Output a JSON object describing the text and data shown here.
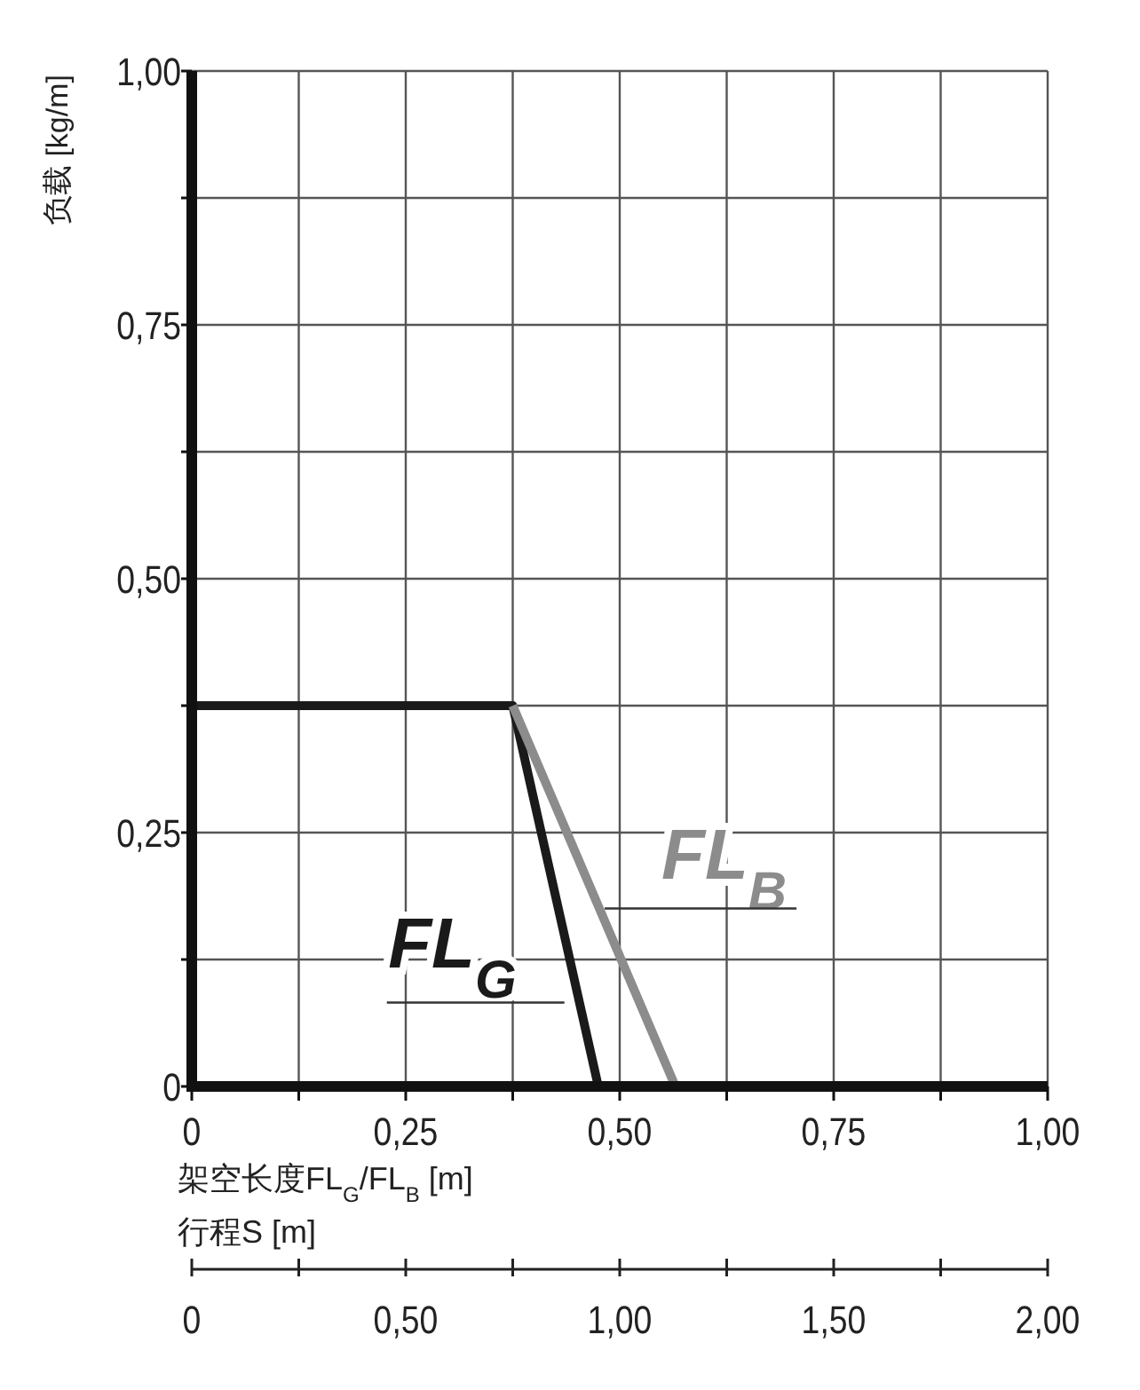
{
  "chart_data": {
    "type": "line",
    "xlabel": "架空长度FL$_{G}$/FL$_{B}$ [m]",
    "ylabel": "负载 [kg/m]",
    "x2label": "行程S [m]",
    "xlim": [
      0,
      1
    ],
    "ylim": [
      0,
      1
    ],
    "x2lim": [
      0,
      2
    ],
    "xticks": [
      0,
      {
        "value": 0.125,
        "label": null
      },
      {
        "value": 0.25,
        "label": "0,25"
      },
      {
        "value": 0.375,
        "label": null
      },
      {
        "value": 0.5,
        "label": "0,50"
      },
      {
        "value": 0.625,
        "label": null
      },
      {
        "value": 0.75,
        "label": "0,75"
      },
      {
        "value": 0.875,
        "label": null
      },
      {
        "value": 1,
        "label": "1,00"
      }
    ],
    "yticks": [
      0,
      {
        "value": 0.125,
        "label": null
      },
      {
        "value": 0.25,
        "label": "0,25"
      },
      {
        "value": 0.375,
        "label": null
      },
      {
        "value": 0.5,
        "label": "0,50"
      },
      {
        "value": 0.625,
        "label": null
      },
      {
        "value": 0.75,
        "label": "0,75"
      },
      {
        "value": 0.875,
        "label": null
      },
      {
        "value": 1,
        "label": "1,00"
      }
    ],
    "x2ticks": [
      0,
      {
        "value": 0.25,
        "label": null
      },
      {
        "value": 0.5,
        "label": "0,50"
      },
      {
        "value": 0.75,
        "label": null
      },
      {
        "value": 1,
        "label": "1,00"
      },
      {
        "value": 1.25,
        "label": null
      },
      {
        "value": 1.5,
        "label": "1,50"
      },
      {
        "value": 1.75,
        "label": null
      },
      {
        "value": 2,
        "label": "2,00"
      }
    ],
    "grid": true,
    "marker": "none",
    "line_style": "solid",
    "series": [
      {
        "name": "FL$_{G}$",
        "color": "#1a1a1a",
        "x": [
          0,
          0.375,
          0.475
        ],
        "values": [
          0.375,
          0.375,
          0
        ]
      },
      {
        "name": "FL$_{B}$",
        "color": "#8c8c8c",
        "x": [
          0.375,
          0.565
        ],
        "values": [
          0.375,
          0
        ]
      }
    ]
  }
}
